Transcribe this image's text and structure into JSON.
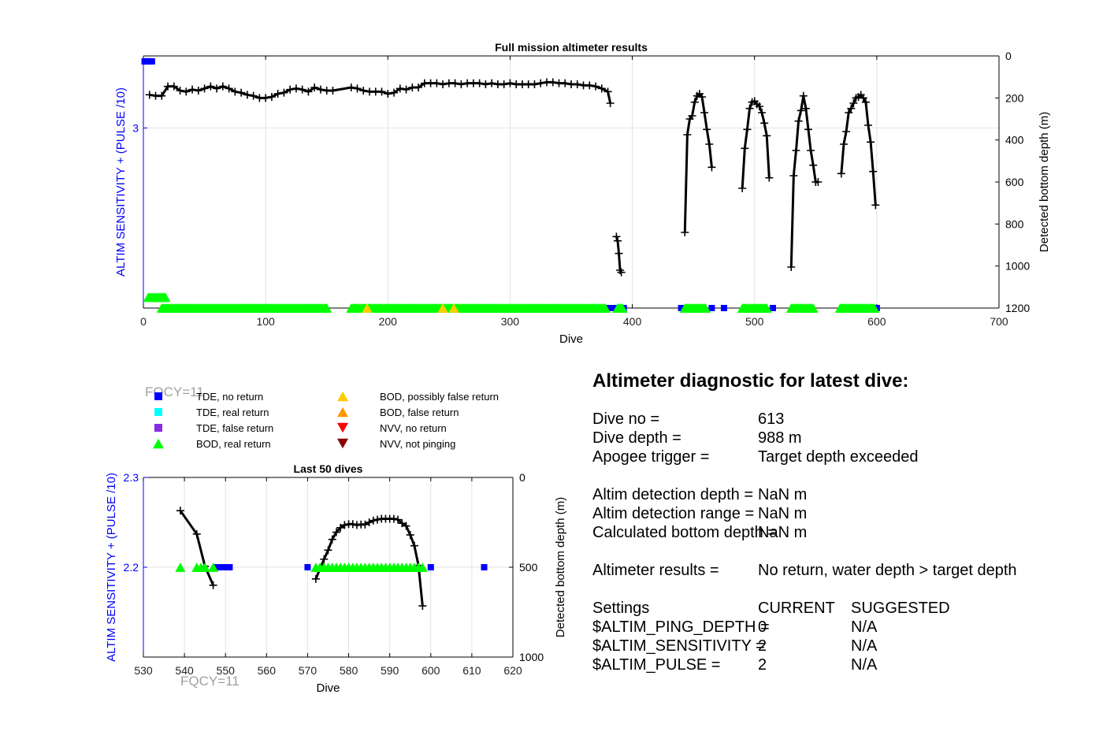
{
  "chart_data": [
    {
      "type": "scatter",
      "title": "Full mission altimeter results",
      "xlabel": "Dive",
      "ylabel": "ALTIM SENSITIVITY + (PULSE /10)",
      "y2label": "Detected bottom depth (m)",
      "xlim": [
        0,
        700
      ],
      "xticks": [
        0,
        100,
        200,
        300,
        400,
        500,
        600,
        700
      ],
      "ylim": [
        2.0,
        3.4
      ],
      "yticks": [
        3
      ],
      "y2lim": [
        0,
        1200
      ],
      "y2ticks": [
        0,
        200,
        400,
        600,
        800,
        1000,
        1200
      ],
      "grid": true,
      "series": [
        {
          "name": "Detected bottom depth",
          "axis": "right",
          "color": "#000000",
          "segments": [
            {
              "x": [
                5,
                10,
                15,
                20,
                25,
                30,
                35,
                40,
                45,
                50,
                55,
                60,
                65,
                70,
                75,
                80,
                85,
                90,
                95,
                100,
                105,
                110,
                115,
                120,
                125,
                130,
                135,
                140,
                145,
                150,
                155,
                170,
                175,
                180,
                185,
                190,
                195,
                200,
                205,
                210,
                215,
                220,
                225,
                230,
                235,
                240,
                245,
                250,
                255,
                260,
                265,
                270,
                275,
                280,
                285,
                290,
                295,
                300,
                305,
                310,
                315,
                320,
                325,
                330,
                335,
                340,
                345,
                350,
                355,
                360,
                365,
                370,
                375,
                380,
                382
              ],
              "y": [
                185,
                190,
                190,
                145,
                145,
                165,
                170,
                160,
                165,
                155,
                145,
                155,
                145,
                155,
                170,
                175,
                185,
                190,
                200,
                200,
                195,
                180,
                175,
                160,
                155,
                160,
                170,
                150,
                160,
                165,
                165,
                150,
                155,
                165,
                170,
                170,
                170,
                180,
                175,
                155,
                160,
                150,
                150,
                130,
                130,
                130,
                135,
                130,
                130,
                135,
                130,
                130,
                130,
                135,
                130,
                135,
                135,
                130,
                135,
                135,
                135,
                135,
                130,
                125,
                125,
                130,
                130,
                135,
                135,
                140,
                140,
                145,
                155,
                170,
                225
              ]
            },
            {
              "x": [
                387,
                388,
                389,
                390,
                391
              ],
              "y": [
                860,
                880,
                940,
                1020,
                1030
              ]
            },
            {
              "x": [
                443,
                445,
                447,
                449,
                451,
                453,
                455,
                457,
                459,
                461,
                463,
                465
              ],
              "y": [
                840,
                375,
                300,
                285,
                220,
                190,
                180,
                195,
                270,
                350,
                420,
                530
              ]
            },
            {
              "x": [
                490,
                492,
                494,
                496,
                498,
                500,
                502,
                504,
                506,
                508,
                510,
                512
              ],
              "y": [
                630,
                440,
                350,
                250,
                220,
                215,
                230,
                240,
                270,
                320,
                380,
                580
              ]
            },
            {
              "x": [
                530,
                532,
                534,
                536,
                538,
                540,
                542,
                544,
                546,
                548,
                550,
                552
              ],
              "y": [
                1005,
                570,
                450,
                310,
                260,
                190,
                250,
                350,
                450,
                520,
                600,
                600
              ]
            },
            {
              "x": [
                571,
                573,
                575,
                577,
                579,
                581,
                583,
                585,
                587,
                589,
                591,
                593,
                595,
                597,
                599
              ],
              "y": [
                560,
                420,
                360,
                270,
                250,
                225,
                200,
                195,
                185,
                200,
                220,
                330,
                410,
                550,
                710
              ]
            }
          ]
        },
        {
          "name": "TDE, no return",
          "color": "#0000ff",
          "marker": "square",
          "axis": "left",
          "points": [
            [
              1,
              3.37
            ],
            [
              3,
              3.37
            ],
            [
              5,
              3.37
            ],
            [
              7,
              3.37
            ],
            [
              380,
              2.0
            ],
            [
              385,
              2.0
            ],
            [
              393,
              2.0
            ],
            [
              440,
              2.0
            ],
            [
              465,
              2.0
            ],
            [
              475,
              2.0
            ],
            [
              493,
              2.0
            ],
            [
              515,
              2.0
            ],
            [
              545,
              2.0
            ],
            [
              590,
              2.0
            ],
            [
              600,
              2.0
            ]
          ]
        },
        {
          "name": "NVV, no return",
          "color": "#ff0000",
          "marker": "triangle-down",
          "axis": "left",
          "points": [
            [
              8,
              2.06
            ],
            [
              244,
              2.0
            ]
          ]
        },
        {
          "name": "BOD, real return",
          "color": "#00ff00",
          "marker": "triangle",
          "axis": "left",
          "groups": [
            {
              "from": 4,
              "to": 18,
              "y": 2.06
            },
            {
              "from": 15,
              "to": 150,
              "y": 2.0
            },
            {
              "from": 170,
              "to": 378,
              "y": 2.0
            },
            {
              "from": 388,
              "to": 392,
              "y": 2.0
            },
            {
              "from": 443,
              "to": 460,
              "y": 2.0
            },
            {
              "from": 490,
              "to": 510,
              "y": 2.0
            },
            {
              "from": 530,
              "to": 548,
              "y": 2.0
            },
            {
              "from": 570,
              "to": 598,
              "y": 2.0
            }
          ]
        },
        {
          "name": "BOD, possibly false return",
          "color": "#ffcc00",
          "marker": "triangle",
          "axis": "left",
          "points": [
            [
              183,
              2.0
            ],
            [
              245,
              2.0
            ],
            [
              254,
              2.0
            ]
          ]
        }
      ]
    },
    {
      "type": "scatter",
      "title": "Last 50 dives",
      "xlabel": "Dive",
      "ylabel": "ALTIM SENSITIVITY + (PULSE /10)",
      "y2label": "Detected bottom depth (m)",
      "xlim": [
        530,
        620
      ],
      "xticks": [
        530,
        540,
        550,
        560,
        570,
        580,
        590,
        600,
        610,
        620
      ],
      "ylim": [
        2.1,
        2.3
      ],
      "yticks": [
        2.2,
        2.3
      ],
      "y2lim": [
        0,
        1000
      ],
      "y2ticks": [
        0,
        500,
        1000
      ],
      "grid": true,
      "series": [
        {
          "name": "Detected bottom depth",
          "axis": "right",
          "color": "#000000",
          "segments": [
            {
              "x": [
                539,
                543,
                545,
                547
              ],
              "y": [
                185,
                315,
                495,
                600
              ]
            },
            {
              "x": [
                572,
                574,
                575,
                576,
                577,
                578,
                579,
                580,
                581,
                582,
                583,
                584,
                585,
                586,
                587,
                588,
                589,
                590,
                591,
                592,
                593,
                594,
                595,
                596,
                597,
                598
              ],
              "y": [
                565,
                455,
                405,
                345,
                305,
                280,
                265,
                260,
                260,
                265,
                262,
                262,
                250,
                240,
                235,
                230,
                230,
                230,
                230,
                235,
                255,
                270,
                320,
                380,
                490,
                715
              ]
            }
          ]
        },
        {
          "name": "TDE, no return",
          "color": "#0000ff",
          "marker": "square",
          "axis": "left",
          "points": [
            [
              548,
              2.2
            ],
            [
              549,
              2.2
            ],
            [
              550,
              2.2
            ],
            [
              551,
              2.2
            ],
            [
              570,
              2.2
            ],
            [
              600,
              2.2
            ],
            [
              613,
              2.2
            ]
          ]
        },
        {
          "name": "BOD, real return",
          "color": "#00ff00",
          "marker": "triangle",
          "axis": "left",
          "points": [
            [
              539,
              2.2
            ],
            [
              543,
              2.2
            ],
            [
              544,
              2.2
            ],
            [
              545,
              2.2
            ],
            [
              547,
              2.2
            ],
            [
              572,
              2.2
            ],
            [
              573,
              2.2
            ],
            [
              574,
              2.2
            ],
            [
              575,
              2.2
            ],
            [
              576,
              2.2
            ],
            [
              577,
              2.2
            ],
            [
              578,
              2.2
            ],
            [
              579,
              2.2
            ],
            [
              580,
              2.2
            ],
            [
              581,
              2.2
            ],
            [
              582,
              2.2
            ],
            [
              583,
              2.2
            ],
            [
              584,
              2.2
            ],
            [
              585,
              2.2
            ],
            [
              586,
              2.2
            ],
            [
              587,
              2.2
            ],
            [
              588,
              2.2
            ],
            [
              589,
              2.2
            ],
            [
              590,
              2.2
            ],
            [
              591,
              2.2
            ],
            [
              592,
              2.2
            ],
            [
              593,
              2.2
            ],
            [
              594,
              2.2
            ],
            [
              595,
              2.2
            ],
            [
              596,
              2.2
            ],
            [
              597,
              2.2
            ],
            [
              598,
              2.2
            ]
          ]
        }
      ]
    }
  ],
  "fqcy_label": "FQCY=11",
  "legend": {
    "items": [
      {
        "label": "TDE, no return",
        "color": "#0000ff",
        "shape": "square"
      },
      {
        "label": "TDE, real return",
        "color": "#00ffff",
        "shape": "square"
      },
      {
        "label": "TDE, false return",
        "color": "#8a2be2",
        "shape": "square"
      },
      {
        "label": "BOD, real return",
        "color": "#00ff00",
        "shape": "triangle-up"
      },
      {
        "label": "BOD, possibly false return",
        "color": "#ffcc00",
        "shape": "triangle-up"
      },
      {
        "label": "BOD, false return",
        "color": "#ff9900",
        "shape": "triangle-up"
      },
      {
        "label": "NVV, no return",
        "color": "#ff0000",
        "shape": "triangle-down"
      },
      {
        "label": "NVV, not pinging",
        "color": "#8b0000",
        "shape": "triangle-down"
      }
    ]
  },
  "diagnostic": {
    "title": "Altimeter diagnostic for latest dive:",
    "rows": [
      {
        "label": "Dive no =",
        "value": "613"
      },
      {
        "label": "Dive depth =",
        "value": "988 m"
      },
      {
        "label": "Apogee trigger =",
        "value": "Target depth exceeded"
      },
      {
        "label": "Altim detection depth =",
        "value": "NaN m"
      },
      {
        "label": "Altim detection range =",
        "value": "NaN m"
      },
      {
        "label": "Calculated bottom depth =",
        "value": "NaN m"
      },
      {
        "label": "Altimeter results =",
        "value": "No return, water depth > target depth"
      }
    ],
    "settings": {
      "header": {
        "label": "Settings",
        "current": "CURRENT",
        "suggested": "SUGGESTED"
      },
      "rows": [
        {
          "label": "$ALTIM_PING_DEPTH =",
          "current": "0",
          "suggested": "N/A"
        },
        {
          "label": "$ALTIM_SENSITIVITY =",
          "current": "2",
          "suggested": "N/A"
        },
        {
          "label": "$ALTIM_PULSE =",
          "current": "2",
          "suggested": "N/A"
        }
      ]
    }
  }
}
